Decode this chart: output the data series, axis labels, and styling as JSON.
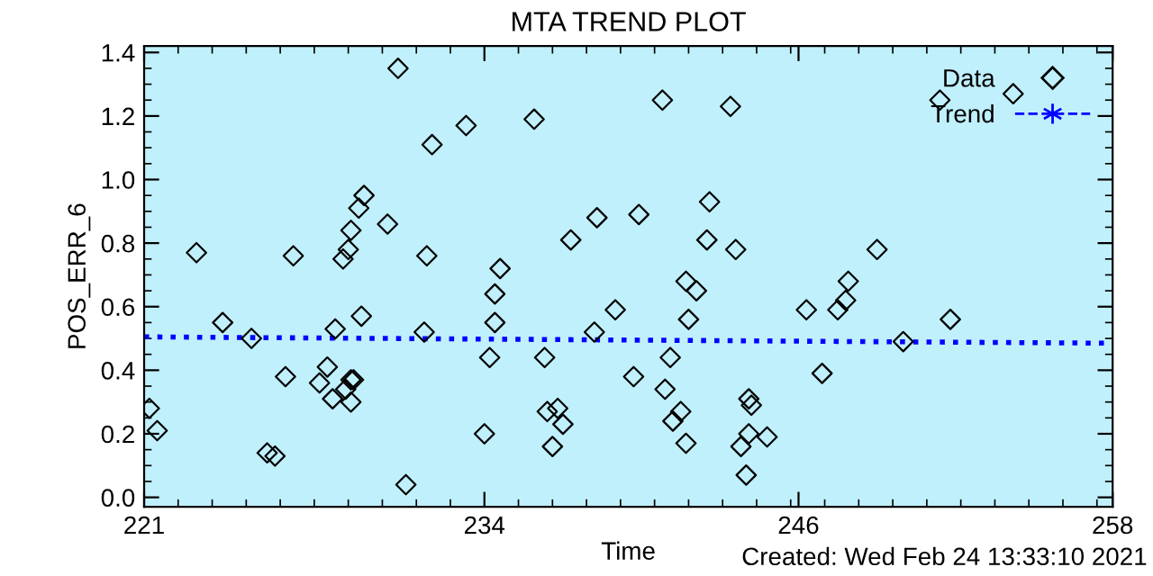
{
  "chart_data": {
    "type": "scatter",
    "title": "MTA TREND PLOT",
    "xlabel": "Time",
    "ylabel": "POS_ERR_6",
    "annotations": [
      "Created: Wed Feb 24 13:33:10 2021"
    ],
    "xlim": [
      221,
      258
    ],
    "xticks": [
      {
        "value": 221,
        "label": "221"
      },
      {
        "value": 234,
        "label": "234"
      },
      {
        "value": 246,
        "label": "246"
      },
      {
        "value": 258,
        "label": "258"
      }
    ],
    "ylim": [
      -0.03,
      1.42
    ],
    "yticks": [
      {
        "value": 0,
        "label": "0.0"
      },
      {
        "value": 0.2,
        "label": "0.2"
      },
      {
        "value": 0.4,
        "label": "0.4"
      },
      {
        "value": 0.6,
        "label": "0.6"
      },
      {
        "value": 0.8,
        "label": "0.8"
      },
      {
        "value": 1.0,
        "label": "1.0"
      },
      {
        "value": 1.2,
        "label": "1.2"
      },
      {
        "value": 1.4,
        "label": "1.4"
      }
    ],
    "grid": false,
    "legend": "top right",
    "series": [
      {
        "name": "Data",
        "marker": "diamond",
        "color": "#000000",
        "x": [
          221.2,
          221.5,
          223.0,
          224.0,
          225.1,
          225.7,
          226.0,
          226.4,
          226.7,
          227.7,
          228.0,
          228.2,
          228.3,
          228.6,
          228.8,
          228.9,
          228.7,
          228.9,
          229.0,
          228.9,
          229.2,
          229.4,
          229.3,
          230.3,
          230.7,
          231.0,
          231.7,
          231.8,
          232.0,
          233.3,
          234.0,
          234.2,
          234.4,
          234.4,
          234.6,
          235.9,
          236.3,
          236.4,
          236.8,
          236.6,
          237.0,
          237.3,
          238.2,
          238.3,
          239.0,
          239.7,
          239.9,
          240.8,
          240.9,
          241.1,
          241.2,
          241.5,
          241.7,
          241.7,
          242.1,
          241.8,
          242.5,
          242.6,
          243.4,
          243.6,
          244.1,
          244.2,
          244.1,
          243.8,
          244.0,
          244.8,
          246.3,
          246.9,
          247.5,
          247.8,
          247.9,
          249.0,
          250.0,
          251.4,
          251.8,
          254.2
        ],
        "values": [
          0.28,
          0.21,
          0.77,
          0.55,
          0.5,
          0.14,
          0.13,
          0.38,
          0.76,
          0.36,
          0.41,
          0.31,
          0.53,
          0.75,
          0.78,
          0.84,
          0.34,
          0.37,
          0.37,
          0.3,
          0.91,
          0.95,
          0.57,
          0.86,
          1.35,
          0.04,
          0.52,
          0.76,
          1.11,
          1.17,
          0.2,
          0.44,
          0.55,
          0.64,
          0.72,
          1.19,
          0.44,
          0.27,
          0.28,
          0.16,
          0.23,
          0.81,
          0.52,
          0.88,
          0.59,
          0.38,
          0.89,
          1.25,
          0.34,
          0.44,
          0.24,
          0.27,
          0.17,
          0.68,
          0.65,
          0.56,
          0.81,
          0.93,
          1.23,
          0.78,
          0.31,
          0.29,
          0.2,
          0.16,
          0.07,
          0.19,
          0.59,
          0.39,
          0.59,
          0.62,
          0.68,
          0.78,
          0.49,
          1.25,
          0.56,
          1.27
        ]
      },
      {
        "name": "Trend",
        "type": "line",
        "line_style": "dotted",
        "color": "#0000ff",
        "x": [
          221,
          258
        ],
        "values": [
          0.505,
          0.485
        ]
      }
    ]
  }
}
